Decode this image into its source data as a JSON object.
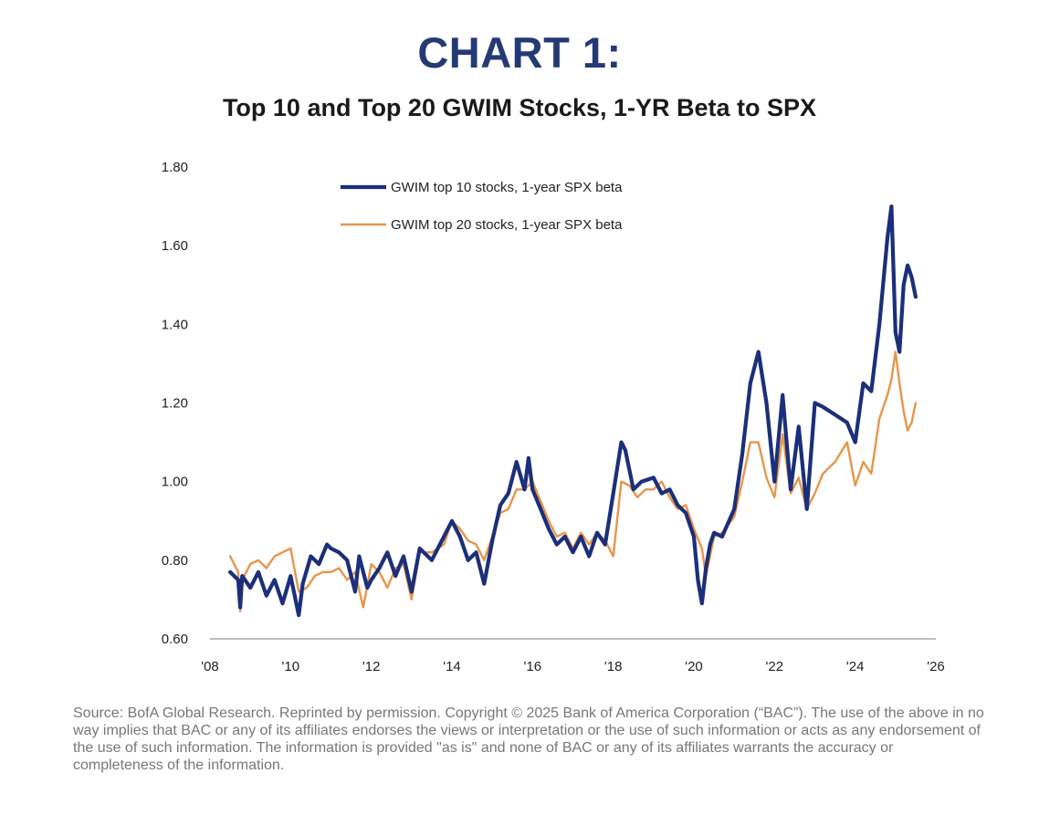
{
  "header": {
    "label": "CHART 1:",
    "title": "Top 10 and Top 20 GWIM Stocks, 1-YR Beta to SPX"
  },
  "source_note": "Source: BofA Global Research. Reprinted by permission. Copyright © 2025 Bank of America Corporation (“BAC”). The use of the above in no way implies that BAC or any of its affiliates endorses the views or interpretation or the use of such information or acts as any endorsement of the use of such information. The information is provided \"as is\" and none of BAC or any of its affiliates warrants the accuracy or completeness of the information.",
  "chart_data": {
    "type": "line",
    "title": "Top 10 and Top 20 GWIM Stocks, 1-YR Beta to SPX",
    "xlabel": "",
    "ylabel": "",
    "xlim": [
      2008,
      2026
    ],
    "ylim": [
      0.6,
      1.8
    ],
    "x_ticks": [
      2008,
      2010,
      2012,
      2014,
      2016,
      2018,
      2020,
      2022,
      2024,
      2026
    ],
    "x_tick_labels": [
      "'08",
      "'10",
      "'12",
      "'14",
      "'16",
      "'18",
      "'20",
      "'22",
      "'24",
      "'26"
    ],
    "y_ticks": [
      0.6,
      0.8,
      1.0,
      1.2,
      1.4,
      1.6,
      1.8
    ],
    "y_tick_labels": [
      "0.60",
      "0.80",
      "1.00",
      "1.20",
      "1.40",
      "1.60",
      "1.80"
    ],
    "grid": false,
    "legend_position": "top-center",
    "series": [
      {
        "name": "GWIM top 10 stocks, 1-year SPX beta",
        "color": "#1b2f7a",
        "x": [
          2008.5,
          2008.7,
          2008.75,
          2008.8,
          2009.0,
          2009.2,
          2009.4,
          2009.6,
          2009.8,
          2010.0,
          2010.2,
          2010.3,
          2010.5,
          2010.7,
          2010.9,
          2011.0,
          2011.2,
          2011.4,
          2011.6,
          2011.7,
          2011.9,
          2012.0,
          2012.2,
          2012.4,
          2012.6,
          2012.8,
          2013.0,
          2013.2,
          2013.5,
          2013.8,
          2014.0,
          2014.2,
          2014.4,
          2014.6,
          2014.8,
          2015.0,
          2015.2,
          2015.4,
          2015.6,
          2015.8,
          2015.9,
          2016.0,
          2016.2,
          2016.4,
          2016.6,
          2016.8,
          2017.0,
          2017.2,
          2017.4,
          2017.6,
          2017.8,
          2018.0,
          2018.2,
          2018.3,
          2018.5,
          2018.7,
          2019.0,
          2019.2,
          2019.4,
          2019.6,
          2019.8,
          2020.0,
          2020.1,
          2020.2,
          2020.3,
          2020.4,
          2020.5,
          2020.7,
          2021.0,
          2021.2,
          2021.4,
          2021.6,
          2021.8,
          2022.0,
          2022.2,
          2022.4,
          2022.6,
          2022.8,
          2023.0,
          2023.2,
          2023.5,
          2023.8,
          2024.0,
          2024.2,
          2024.4,
          2024.6,
          2024.8,
          2024.9,
          2025.0,
          2025.1,
          2025.2,
          2025.3,
          2025.4,
          2025.5
        ],
        "values": [
          0.77,
          0.75,
          0.68,
          0.76,
          0.73,
          0.77,
          0.71,
          0.75,
          0.69,
          0.76,
          0.66,
          0.74,
          0.81,
          0.79,
          0.84,
          0.83,
          0.82,
          0.8,
          0.72,
          0.81,
          0.73,
          0.75,
          0.78,
          0.82,
          0.76,
          0.81,
          0.72,
          0.83,
          0.8,
          0.86,
          0.9,
          0.86,
          0.8,
          0.82,
          0.74,
          0.85,
          0.94,
          0.97,
          1.05,
          0.98,
          1.06,
          0.98,
          0.93,
          0.88,
          0.84,
          0.86,
          0.82,
          0.86,
          0.81,
          0.87,
          0.84,
          0.97,
          1.1,
          1.08,
          0.98,
          1.0,
          1.01,
          0.97,
          0.98,
          0.94,
          0.92,
          0.86,
          0.75,
          0.69,
          0.78,
          0.84,
          0.87,
          0.86,
          0.93,
          1.07,
          1.25,
          1.33,
          1.2,
          1.0,
          1.22,
          0.98,
          1.14,
          0.93,
          1.2,
          1.19,
          1.17,
          1.15,
          1.1,
          1.25,
          1.23,
          1.4,
          1.62,
          1.7,
          1.38,
          1.33,
          1.5,
          1.55,
          1.52,
          1.47
        ]
      },
      {
        "name": "GWIM top 20 stocks, 1-year SPX beta",
        "color": "#e8954a",
        "x": [
          2008.5,
          2008.7,
          2008.75,
          2008.8,
          2009.0,
          2009.2,
          2009.4,
          2009.6,
          2009.8,
          2010.0,
          2010.2,
          2010.4,
          2010.6,
          2010.8,
          2011.0,
          2011.2,
          2011.4,
          2011.6,
          2011.8,
          2012.0,
          2012.2,
          2012.4,
          2012.6,
          2012.8,
          2013.0,
          2013.2,
          2013.5,
          2013.8,
          2014.0,
          2014.2,
          2014.4,
          2014.6,
          2014.8,
          2015.0,
          2015.2,
          2015.4,
          2015.6,
          2015.8,
          2016.0,
          2016.2,
          2016.4,
          2016.6,
          2016.8,
          2017.0,
          2017.2,
          2017.4,
          2017.6,
          2017.8,
          2018.0,
          2018.2,
          2018.4,
          2018.6,
          2018.8,
          2019.0,
          2019.2,
          2019.4,
          2019.6,
          2019.8,
          2020.0,
          2020.2,
          2020.3,
          2020.5,
          2020.7,
          2021.0,
          2021.2,
          2021.4,
          2021.6,
          2021.8,
          2022.0,
          2022.2,
          2022.4,
          2022.6,
          2022.8,
          2023.0,
          2023.2,
          2023.5,
          2023.8,
          2024.0,
          2024.2,
          2024.4,
          2024.6,
          2024.8,
          2024.9,
          2025.0,
          2025.1,
          2025.2,
          2025.3,
          2025.4,
          2025.5
        ],
        "values": [
          0.81,
          0.77,
          0.67,
          0.75,
          0.79,
          0.8,
          0.78,
          0.81,
          0.82,
          0.83,
          0.72,
          0.73,
          0.76,
          0.77,
          0.77,
          0.78,
          0.75,
          0.77,
          0.68,
          0.79,
          0.77,
          0.73,
          0.78,
          0.79,
          0.7,
          0.82,
          0.82,
          0.84,
          0.9,
          0.88,
          0.85,
          0.84,
          0.8,
          0.86,
          0.92,
          0.93,
          0.98,
          0.98,
          1.0,
          0.95,
          0.9,
          0.86,
          0.87,
          0.83,
          0.87,
          0.84,
          0.87,
          0.85,
          0.81,
          1.0,
          0.99,
          0.96,
          0.98,
          0.98,
          1.0,
          0.96,
          0.93,
          0.94,
          0.88,
          0.83,
          0.76,
          0.86,
          0.87,
          0.91,
          1.0,
          1.1,
          1.1,
          1.01,
          0.96,
          1.12,
          0.97,
          1.01,
          0.93,
          0.97,
          1.02,
          1.05,
          1.1,
          0.99,
          1.05,
          1.02,
          1.16,
          1.22,
          1.26,
          1.33,
          1.25,
          1.18,
          1.13,
          1.15,
          1.2
        ]
      }
    ]
  }
}
